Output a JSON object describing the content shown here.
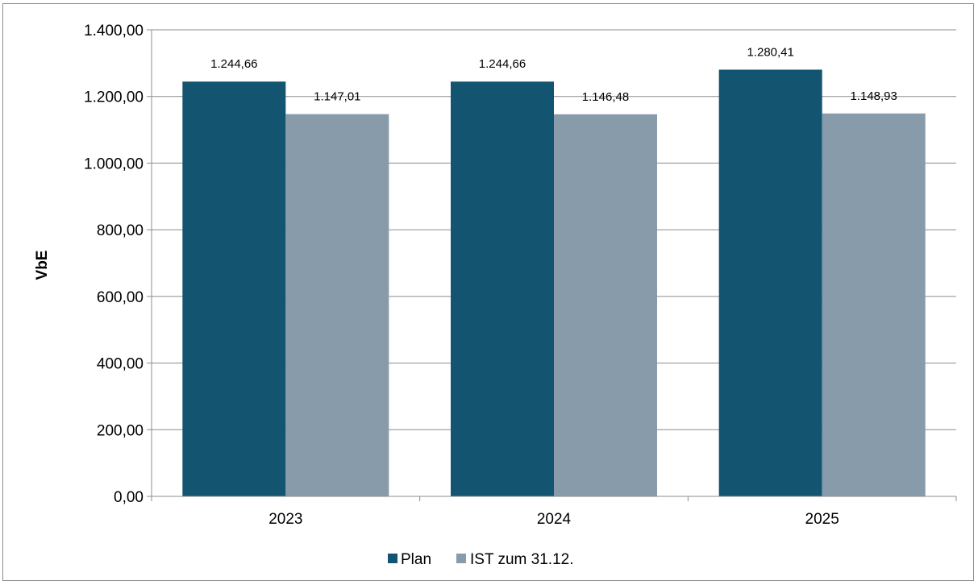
{
  "chart_data": {
    "type": "bar",
    "categories": [
      "2023",
      "2024",
      "2025"
    ],
    "series": [
      {
        "name": "Plan",
        "values": [
          1244.66,
          1244.66,
          1280.41
        ],
        "labels": [
          "1.244,66",
          "1.244,66",
          "1.280,41"
        ],
        "color": "#135470"
      },
      {
        "name": "IST zum 31.12.",
        "values": [
          1147.01,
          1146.48,
          1148.93
        ],
        "labels": [
          "1.147,01",
          "1.146,48",
          "1.148,93"
        ],
        "color": "#879bab"
      }
    ],
    "title": "",
    "xlabel": "",
    "ylabel": "VbE",
    "ylim": [
      0,
      1400
    ],
    "yticks": [
      0,
      200,
      400,
      600,
      800,
      1000,
      1200,
      1400
    ],
    "ytick_labels": [
      "0,00",
      "200,00",
      "400,00",
      "600,00",
      "800,00",
      "1.000,00",
      "1.200,00",
      "1.400,00"
    ],
    "grid": true,
    "legend_position": "bottom"
  }
}
